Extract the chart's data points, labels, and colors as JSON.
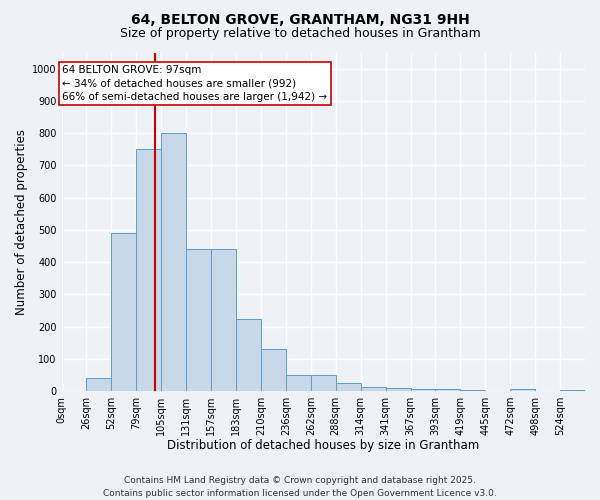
{
  "title1": "64, BELTON GROVE, GRANTHAM, NG31 9HH",
  "title2": "Size of property relative to detached houses in Grantham",
  "xlabel": "Distribution of detached houses by size in Grantham",
  "ylabel": "Number of detached properties",
  "bin_labels": [
    "0sqm",
    "26sqm",
    "52sqm",
    "79sqm",
    "105sqm",
    "131sqm",
    "157sqm",
    "183sqm",
    "210sqm",
    "236sqm",
    "262sqm",
    "288sqm",
    "314sqm",
    "341sqm",
    "367sqm",
    "393sqm",
    "419sqm",
    "445sqm",
    "472sqm",
    "498sqm",
    "524sqm"
  ],
  "bar_values": [
    0,
    40,
    490,
    750,
    800,
    440,
    440,
    225,
    130,
    50,
    50,
    25,
    12,
    10,
    8,
    5,
    3,
    0,
    5,
    0,
    3
  ],
  "bar_color": "#c8d8e8",
  "bar_edge_color": "#5b9bd5",
  "vline_x": 97,
  "vline_color": "#cc0000",
  "ylim": [
    0,
    1050
  ],
  "yticks": [
    0,
    100,
    200,
    300,
    400,
    500,
    600,
    700,
    800,
    900,
    1000
  ],
  "annotation_line1": "64 BELTON GROVE: 97sqm",
  "annotation_line2": "← 34% of detached houses are smaller (992)",
  "annotation_line3": "66% of semi-detached houses are larger (1,942) →",
  "annotation_box_color": "#cc0000",
  "footnote1": "Contains HM Land Registry data © Crown copyright and database right 2025.",
  "footnote2": "Contains public sector information licensed under the Open Government Licence v3.0.",
  "bg_color": "#eef2f7",
  "plot_bg_color": "#eef2f7",
  "grid_color": "#ffffff",
  "bin_width": 26,
  "property_size": 97,
  "title1_fontsize": 10,
  "title2_fontsize": 9,
  "xlabel_fontsize": 8.5,
  "ylabel_fontsize": 8.5,
  "tick_fontsize": 7,
  "annotation_fontsize": 7.5,
  "footnote_fontsize": 6.5
}
